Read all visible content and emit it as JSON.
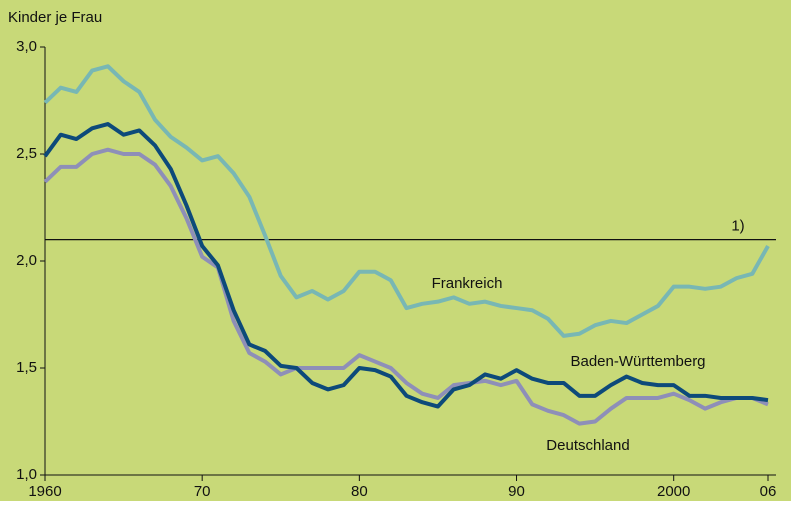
{
  "chart_data": {
    "type": "line",
    "y_label": "Kinder je Frau",
    "x": [
      1960,
      1961,
      1962,
      1963,
      1964,
      1965,
      1966,
      1967,
      1968,
      1969,
      1970,
      1971,
      1972,
      1973,
      1974,
      1975,
      1976,
      1977,
      1978,
      1979,
      1980,
      1981,
      1982,
      1983,
      1984,
      1985,
      1986,
      1987,
      1988,
      1989,
      1990,
      1991,
      1992,
      1993,
      1994,
      1995,
      1996,
      1997,
      1998,
      1999,
      2000,
      2001,
      2002,
      2003,
      2004,
      2005,
      2006
    ],
    "series": [
      {
        "name": "Frankreich",
        "color": "#78b7b4",
        "values": [
          2.74,
          2.81,
          2.79,
          2.89,
          2.91,
          2.84,
          2.79,
          2.66,
          2.58,
          2.53,
          2.47,
          2.49,
          2.41,
          2.3,
          2.12,
          1.93,
          1.83,
          1.86,
          1.82,
          1.86,
          1.95,
          1.95,
          1.91,
          1.78,
          1.8,
          1.81,
          1.83,
          1.8,
          1.81,
          1.79,
          1.78,
          1.77,
          1.73,
          1.65,
          1.66,
          1.7,
          1.72,
          1.71,
          1.75,
          1.79,
          1.88,
          1.88,
          1.87,
          1.88,
          1.92,
          1.94,
          2.07
        ]
      },
      {
        "name": "Baden-Württemberg",
        "color": "#0d4a7a",
        "values": [
          2.49,
          2.59,
          2.57,
          2.62,
          2.64,
          2.59,
          2.61,
          2.54,
          2.43,
          2.26,
          2.07,
          1.98,
          1.77,
          1.61,
          1.58,
          1.51,
          1.5,
          1.43,
          1.4,
          1.42,
          1.5,
          1.49,
          1.46,
          1.37,
          1.34,
          1.32,
          1.4,
          1.42,
          1.47,
          1.45,
          1.49,
          1.45,
          1.43,
          1.43,
          1.37,
          1.37,
          1.42,
          1.46,
          1.43,
          1.42,
          1.42,
          1.37,
          1.37,
          1.36,
          1.36,
          1.36,
          1.35
        ]
      },
      {
        "name": "Deutschland",
        "color": "#8e8fb8",
        "values": [
          2.37,
          2.44,
          2.44,
          2.5,
          2.52,
          2.5,
          2.5,
          2.45,
          2.35,
          2.2,
          2.02,
          1.97,
          1.72,
          1.57,
          1.53,
          1.47,
          1.5,
          1.5,
          1.5,
          1.5,
          1.56,
          1.53,
          1.5,
          1.43,
          1.38,
          1.36,
          1.42,
          1.43,
          1.44,
          1.42,
          1.44,
          1.33,
          1.3,
          1.28,
          1.24,
          1.25,
          1.31,
          1.36,
          1.36,
          1.36,
          1.38,
          1.35,
          1.31,
          1.34,
          1.36,
          1.36,
          1.33
        ]
      }
    ],
    "reference_line": {
      "value": 2.1,
      "label": "1)"
    },
    "xlim": [
      1960,
      2006
    ],
    "xticks": [
      1960,
      {
        "value": 1970,
        "label": "70"
      },
      {
        "value": 1980,
        "label": "80"
      },
      {
        "value": 1990,
        "label": "90"
      },
      2000,
      {
        "value": 2006,
        "label": "06"
      }
    ],
    "ylim": [
      1,
      3
    ],
    "yticks": [
      {
        "value": 1,
        "label": "1,0"
      },
      {
        "value": 1.5,
        "label": "1,5"
      },
      {
        "value": 2,
        "label": "2,0"
      },
      {
        "value": 2.5,
        "label": "2,5"
      },
      {
        "value": 3,
        "label": "3,0"
      }
    ],
    "background": "#c8d978"
  }
}
